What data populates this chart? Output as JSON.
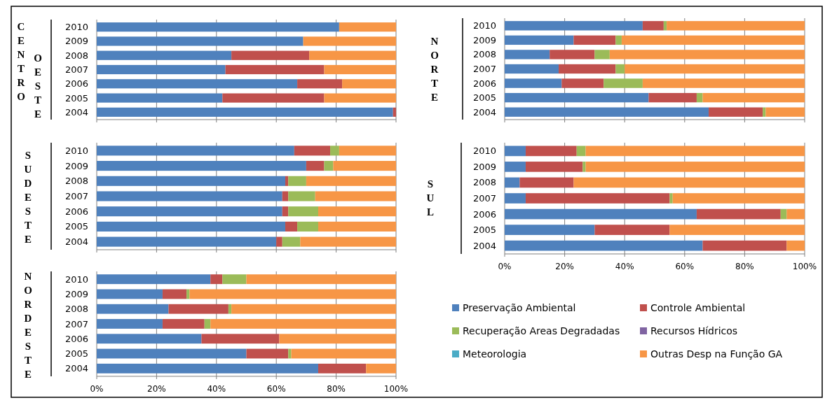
{
  "chart_data": [
    {
      "type": "bar",
      "orientation": "horizontal",
      "stacked": true,
      "title": "CENTRO OESTE",
      "categories": [
        "2010",
        "2009",
        "2008",
        "2007",
        "2006",
        "2005",
        "2004"
      ],
      "xlim": [
        0,
        100
      ],
      "xticks": [
        {
          "value": 0,
          "label": null
        },
        {
          "value": 20,
          "label": null
        },
        {
          "value": 40,
          "label": null
        },
        {
          "value": 60,
          "label": null
        },
        {
          "value": 80,
          "label": null
        },
        {
          "value": 100,
          "label": null
        }
      ],
      "tick_labels": "y",
      "grid": "x",
      "legend": false,
      "series": [
        {
          "color": "#4f81bd",
          "values": [
            81,
            69,
            45,
            43,
            67,
            42,
            99
          ]
        },
        {
          "color": "#c0504d",
          "values": [
            0,
            0,
            26,
            33,
            15,
            34,
            1
          ]
        },
        {
          "color": "#9bbb59",
          "values": [
            0,
            0,
            0,
            0,
            0,
            0,
            0
          ]
        },
        {
          "color": "#8064a2",
          "values": [
            0,
            0,
            0,
            0,
            0,
            0,
            0
          ]
        },
        {
          "color": "#4bacc6",
          "values": [
            0,
            0,
            0,
            0,
            0,
            0,
            0
          ]
        },
        {
          "color": "#f79646",
          "values": [
            19,
            31,
            29,
            24,
            18,
            24,
            0
          ]
        }
      ]
    },
    {
      "type": "bar",
      "orientation": "horizontal",
      "stacked": true,
      "title": "NORTE",
      "categories": [
        "2010",
        "2009",
        "2008",
        "2007",
        "2006",
        "2005",
        "2004"
      ],
      "xlim": [
        0,
        100
      ],
      "xticks": [
        {
          "value": 0,
          "label": null
        },
        {
          "value": 20,
          "label": null
        },
        {
          "value": 40,
          "label": null
        },
        {
          "value": 60,
          "label": null
        },
        {
          "value": 80,
          "label": null
        },
        {
          "value": 100,
          "label": null
        }
      ],
      "tick_labels": "y",
      "grid": "x",
      "legend": false,
      "series": [
        {
          "color": "#4f81bd",
          "values": [
            46,
            23,
            15,
            18,
            19,
            48,
            68
          ]
        },
        {
          "color": "#c0504d",
          "values": [
            7,
            14,
            15,
            19,
            14,
            16,
            18
          ]
        },
        {
          "color": "#9bbb59",
          "values": [
            1,
            2,
            5,
            3,
            13,
            2,
            1
          ]
        },
        {
          "color": "#8064a2",
          "values": [
            0,
            0,
            0,
            0,
            0,
            0,
            0
          ]
        },
        {
          "color": "#4bacc6",
          "values": [
            0,
            0,
            0,
            0,
            0,
            0,
            0
          ]
        },
        {
          "color": "#f79646",
          "values": [
            46,
            61,
            65,
            60,
            54,
            34,
            13
          ]
        }
      ]
    },
    {
      "type": "bar",
      "orientation": "horizontal",
      "stacked": true,
      "title": "SUDESTE",
      "categories": [
        "2010",
        "2009",
        "2008",
        "2007",
        "2006",
        "2005",
        "2004"
      ],
      "xlim": [
        0,
        100
      ],
      "xticks": [
        {
          "value": 0,
          "label": null
        },
        {
          "value": 20,
          "label": null
        },
        {
          "value": 40,
          "label": null
        },
        {
          "value": 60,
          "label": null
        },
        {
          "value": 80,
          "label": null
        },
        {
          "value": 100,
          "label": null
        }
      ],
      "tick_labels": "y",
      "grid": "x",
      "legend": false,
      "series": [
        {
          "color": "#4f81bd",
          "values": [
            66,
            70,
            63,
            62,
            62,
            63,
            60
          ]
        },
        {
          "color": "#c0504d",
          "values": [
            12,
            6,
            1,
            2,
            2,
            4,
            2
          ]
        },
        {
          "color": "#9bbb59",
          "values": [
            3,
            3,
            6,
            9,
            10,
            7,
            6
          ]
        },
        {
          "color": "#8064a2",
          "values": [
            0,
            0,
            0,
            0,
            0,
            0,
            0
          ]
        },
        {
          "color": "#4bacc6",
          "values": [
            0,
            0,
            0,
            0,
            0,
            0,
            0
          ]
        },
        {
          "color": "#f79646",
          "values": [
            19,
            21,
            30,
            27,
            26,
            26,
            32
          ]
        }
      ]
    },
    {
      "type": "bar",
      "orientation": "horizontal",
      "stacked": true,
      "title": "SUL",
      "categories": [
        "2010",
        "2009",
        "2008",
        "2007",
        "2006",
        "2005",
        "2004"
      ],
      "xlim": [
        0,
        100
      ],
      "xticks": [
        {
          "value": 0,
          "label": "0%"
        },
        {
          "value": 20,
          "label": "20%"
        },
        {
          "value": 40,
          "label": "40%"
        },
        {
          "value": 60,
          "label": "60%"
        },
        {
          "value": 80,
          "label": "80%"
        },
        {
          "value": 100,
          "label": "100%"
        }
      ],
      "grid": "x",
      "legend": false,
      "series": [
        {
          "color": "#4f81bd",
          "values": [
            7,
            7,
            5,
            7,
            64,
            30,
            66
          ]
        },
        {
          "color": "#c0504d",
          "values": [
            17,
            19,
            18,
            48,
            28,
            25,
            28
          ]
        },
        {
          "color": "#9bbb59",
          "values": [
            3,
            1,
            0,
            1,
            2,
            0,
            0
          ]
        },
        {
          "color": "#8064a2",
          "values": [
            0,
            0,
            0,
            0,
            0,
            0,
            0
          ]
        },
        {
          "color": "#4bacc6",
          "values": [
            0,
            0,
            0,
            0,
            0,
            0,
            0
          ]
        },
        {
          "color": "#f79646",
          "values": [
            73,
            73,
            77,
            44,
            6,
            45,
            6
          ]
        }
      ]
    },
    {
      "type": "bar",
      "orientation": "horizontal",
      "stacked": true,
      "title": "NORDESTE",
      "categories": [
        "2010",
        "2009",
        "2008",
        "2007",
        "2006",
        "2005",
        "2004"
      ],
      "xlim": [
        0,
        100
      ],
      "xticks": [
        {
          "value": 0,
          "label": "0%"
        },
        {
          "value": 20,
          "label": "20%"
        },
        {
          "value": 40,
          "label": "40%"
        },
        {
          "value": 60,
          "label": "60%"
        },
        {
          "value": 80,
          "label": "80%"
        },
        {
          "value": 100,
          "label": "100%"
        }
      ],
      "grid": "x",
      "legend": "right",
      "series": [
        {
          "name": "Preservação Ambiental",
          "color": "#4f81bd",
          "values": [
            38,
            22,
            24,
            22,
            35,
            50,
            74
          ]
        },
        {
          "name": "Controle Ambiental",
          "color": "#c0504d",
          "values": [
            4,
            8,
            20,
            14,
            26,
            14,
            16
          ]
        },
        {
          "name": "Recuperação Areas Degradadas",
          "color": "#9bbb59",
          "values": [
            8,
            1,
            1,
            2,
            0,
            1,
            0
          ]
        },
        {
          "name": "Recursos Hídricos",
          "color": "#8064a2",
          "values": [
            0,
            0,
            0,
            0,
            0,
            0,
            0
          ]
        },
        {
          "name": "Meteorologia",
          "color": "#4bacc6",
          "values": [
            0,
            0,
            0,
            0,
            0,
            0,
            0
          ]
        },
        {
          "name": "Outras Desp na Função GA",
          "color": "#f79646",
          "values": [
            50,
            69,
            55,
            62,
            39,
            35,
            10
          ]
        }
      ]
    }
  ]
}
